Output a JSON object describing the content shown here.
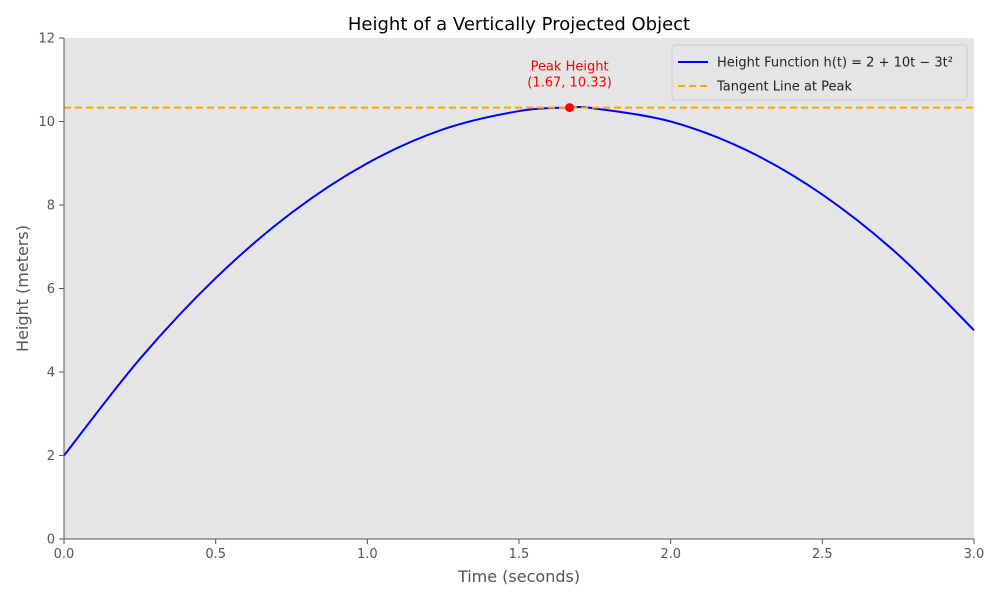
{
  "chart_data": {
    "type": "line",
    "title": "Height of a Vertically Projected Object",
    "xlabel": "Time (seconds)",
    "ylabel": "Height (meters)",
    "xlim": [
      0,
      3
    ],
    "ylim": [
      0,
      12
    ],
    "x_ticks": [
      "0.0",
      "0.5",
      "1.0",
      "1.5",
      "2.0",
      "2.5",
      "3.0"
    ],
    "y_ticks": [
      "0",
      "2",
      "4",
      "6",
      "8",
      "10",
      "12"
    ],
    "grid": false,
    "legend_position": "top-right",
    "series": [
      {
        "name": "Height Function h(t) = 2 + 10t − 3t²",
        "style": "solid",
        "color": "#0000ff",
        "x": [
          0.0,
          0.25,
          0.5,
          0.75,
          1.0,
          1.25,
          1.5,
          1.6667,
          1.75,
          2.0,
          2.25,
          2.5,
          2.75,
          3.0
        ],
        "y": [
          2.0,
          4.3125,
          6.25,
          7.8125,
          9.0,
          9.8125,
          10.25,
          10.3333,
          10.3125,
          10.0,
          9.3125,
          8.25,
          6.8125,
          5.0
        ]
      },
      {
        "name": "Tangent Line at Peak",
        "style": "dashed",
        "color": "#ffa500",
        "x": [
          0.0,
          3.0
        ],
        "y": [
          10.3333,
          10.3333
        ]
      }
    ],
    "peak_point": {
      "x": 1.6667,
      "y": 10.3333,
      "color": "#ff0000"
    },
    "annotation": {
      "line1": "Peak Height",
      "line2": "(1.67, 10.33)"
    },
    "colors": {
      "plot_background": "#e5e5e5",
      "axis_spine": "#555555"
    }
  }
}
